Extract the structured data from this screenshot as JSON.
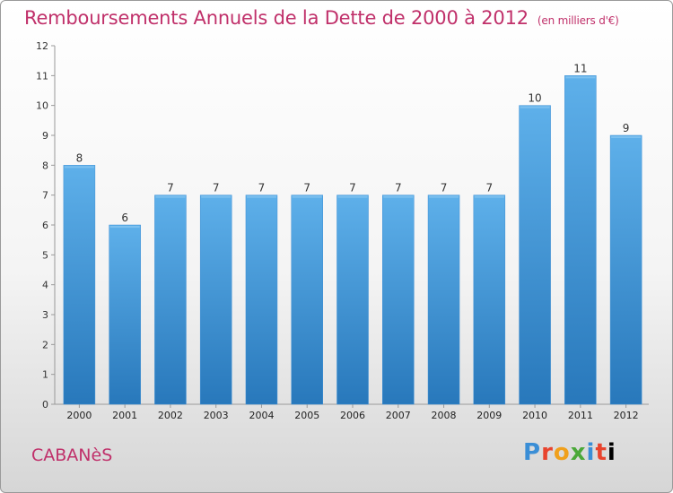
{
  "title": "Remboursements Annuels de la Dette de 2000 à 2012",
  "unit_note": "(en milliers d'€)",
  "commune": "CABANèS",
  "logo": {
    "letters": [
      "P",
      "r",
      "o",
      "x",
      "i",
      "t",
      "i"
    ]
  },
  "colors": {
    "bar": "#4b9de0",
    "bar_top": "#5eb0ea",
    "bar_bottom": "#2878bb",
    "title": "#c0306a"
  },
  "chart_data": {
    "type": "bar",
    "title": "Remboursements Annuels de la Dette de 2000 à 2012",
    "categories": [
      "2000",
      "2001",
      "2002",
      "2003",
      "2004",
      "2005",
      "2006",
      "2007",
      "2008",
      "2009",
      "2010",
      "2011",
      "2012"
    ],
    "values": [
      8,
      6,
      7,
      7,
      7,
      7,
      7,
      7,
      7,
      7,
      10,
      11,
      9
    ],
    "ylim": [
      0,
      12
    ],
    "yticks": [
      0,
      1,
      2,
      3,
      4,
      5,
      6,
      7,
      8,
      9,
      10,
      11,
      12
    ],
    "grid": false,
    "xlabel": "",
    "ylabel": ""
  }
}
